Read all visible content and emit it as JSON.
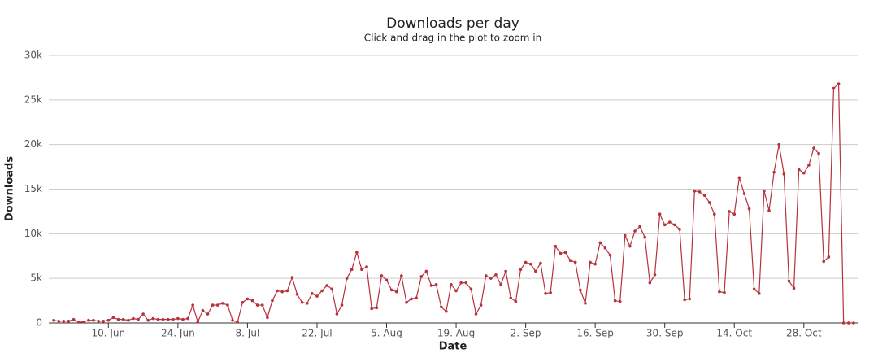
{
  "chart_data": {
    "type": "line",
    "title": "Downloads per day",
    "subtitle": "Click and drag in the plot to zoom in",
    "x_label": "Date",
    "y_label": "Downloads",
    "x": [
      "05-30",
      "05-31",
      "06-01",
      "06-02",
      "06-03",
      "06-04",
      "06-05",
      "06-06",
      "06-07",
      "06-08",
      "06-09",
      "06-10",
      "06-11",
      "06-12",
      "06-13",
      "06-14",
      "06-15",
      "06-16",
      "06-17",
      "06-18",
      "06-19",
      "06-20",
      "06-21",
      "06-22",
      "06-23",
      "06-24",
      "06-25",
      "06-26",
      "06-27",
      "06-28",
      "06-29",
      "06-30",
      "07-01",
      "07-02",
      "07-03",
      "07-04",
      "07-05",
      "07-06",
      "07-07",
      "07-08",
      "07-09",
      "07-10",
      "07-11",
      "07-12",
      "07-13",
      "07-14",
      "07-15",
      "07-16",
      "07-17",
      "07-18",
      "07-19",
      "07-20",
      "07-21",
      "07-22",
      "07-23",
      "07-24",
      "07-25",
      "07-26",
      "07-27",
      "07-28",
      "07-29",
      "07-30",
      "07-31",
      "08-01",
      "08-02",
      "08-03",
      "08-04",
      "08-05",
      "08-06",
      "08-07",
      "08-08",
      "08-09",
      "08-10",
      "08-11",
      "08-12",
      "08-13",
      "08-14",
      "08-15",
      "08-16",
      "08-17",
      "08-18",
      "08-19",
      "08-20",
      "08-21",
      "08-22",
      "08-23",
      "08-24",
      "08-25",
      "08-26",
      "08-27",
      "08-28",
      "08-29",
      "08-30",
      "08-31",
      "09-01",
      "09-02",
      "09-03",
      "09-04",
      "09-05",
      "09-06",
      "09-07",
      "09-08",
      "09-09",
      "09-10",
      "09-11",
      "09-12",
      "09-13",
      "09-14",
      "09-15",
      "09-16",
      "09-17",
      "09-18",
      "09-19",
      "09-20",
      "09-21",
      "09-22",
      "09-23",
      "09-24",
      "09-25",
      "09-26",
      "09-27",
      "09-28",
      "09-29",
      "09-30",
      "10-01",
      "10-02",
      "10-03",
      "10-04",
      "10-05",
      "10-06",
      "10-07",
      "10-08",
      "10-09",
      "10-10",
      "10-11",
      "10-12",
      "10-13",
      "10-14",
      "10-15",
      "10-16",
      "10-17",
      "10-18",
      "10-19",
      "10-20",
      "10-21",
      "10-22",
      "10-23",
      "10-24",
      "10-25",
      "10-26",
      "10-27",
      "10-28",
      "10-29",
      "10-30",
      "10-31",
      "11-01",
      "11-02",
      "11-03",
      "11-04",
      "11-05",
      "11-06",
      "11-07"
    ],
    "series": [
      {
        "color": "#b8323c",
        "values": [
          300,
          200,
          200,
          200,
          400,
          100,
          100,
          300,
          300,
          200,
          200,
          300,
          600,
          400,
          400,
          300,
          500,
          400,
          1000,
          300,
          500,
          400,
          400,
          400,
          400,
          500,
          400,
          500,
          2000,
          100,
          1400,
          1000,
          2000,
          2000,
          2200,
          2000,
          300,
          100,
          2300,
          2700,
          2500,
          2000,
          2000,
          600,
          2500,
          3600,
          3500,
          3600,
          5100,
          3200,
          2300,
          2200,
          3300,
          3000,
          3600,
          4200,
          3800,
          1000,
          2000,
          5000,
          6000,
          7900,
          6000,
          6300,
          1600,
          1700,
          5300,
          4800,
          3700,
          3500,
          5300,
          2300,
          2700,
          2800,
          5200,
          5800,
          4200,
          4300,
          1800,
          1300,
          4300,
          3600,
          4500,
          4500,
          3800,
          1000,
          2000,
          5300,
          5000,
          5400,
          4300,
          5800,
          2800,
          2400,
          6000,
          6800,
          6600,
          5800,
          6700,
          3300,
          3400,
          8600,
          7800,
          7900,
          7000,
          6800,
          3700,
          2200,
          6800,
          6600,
          9000,
          8400,
          7600,
          2500,
          2400,
          9800,
          8600,
          10300,
          10800,
          9600,
          4500,
          5400,
          12200,
          11000,
          11300,
          11000,
          10500,
          2600,
          2700,
          14800,
          14700,
          14300,
          13500,
          12200,
          3500,
          3400,
          12500,
          12200,
          16300,
          14500,
          12800,
          3800,
          3300,
          14800,
          12600,
          16900,
          20000,
          16700,
          4700,
          3900,
          17200,
          16800,
          17700,
          19600,
          19000,
          6900,
          7400,
          26300,
          26800,
          0,
          0,
          0
        ]
      }
    ],
    "xlim": [
      "05-29",
      "11-08"
    ],
    "xticks": [
      {
        "value": "06-10",
        "label": "10. Jun"
      },
      {
        "value": "06-24",
        "label": "24. Jun"
      },
      {
        "value": "07-08",
        "label": "8. Jul"
      },
      {
        "value": "07-22",
        "label": "22. Jul"
      },
      {
        "value": "08-05",
        "label": "5. Aug"
      },
      {
        "value": "08-19",
        "label": "19. Aug"
      },
      {
        "value": "09-02",
        "label": "2. Sep"
      },
      {
        "value": "09-16",
        "label": "16. Sep"
      },
      {
        "value": "09-30",
        "label": "30. Sep"
      },
      {
        "value": "10-14",
        "label": "14. Oct"
      },
      {
        "value": "10-28",
        "label": "28. Oct"
      }
    ],
    "ylim": [
      0,
      30000
    ],
    "yticks": [
      0,
      {
        "value": 5000,
        "label": "5k"
      },
      {
        "value": 10000,
        "label": "10k"
      },
      {
        "value": 15000,
        "label": "15k"
      },
      {
        "value": 20000,
        "label": "20k"
      },
      {
        "value": 25000,
        "label": "25k"
      },
      {
        "value": 30000,
        "label": "30k"
      }
    ],
    "grid": true
  }
}
